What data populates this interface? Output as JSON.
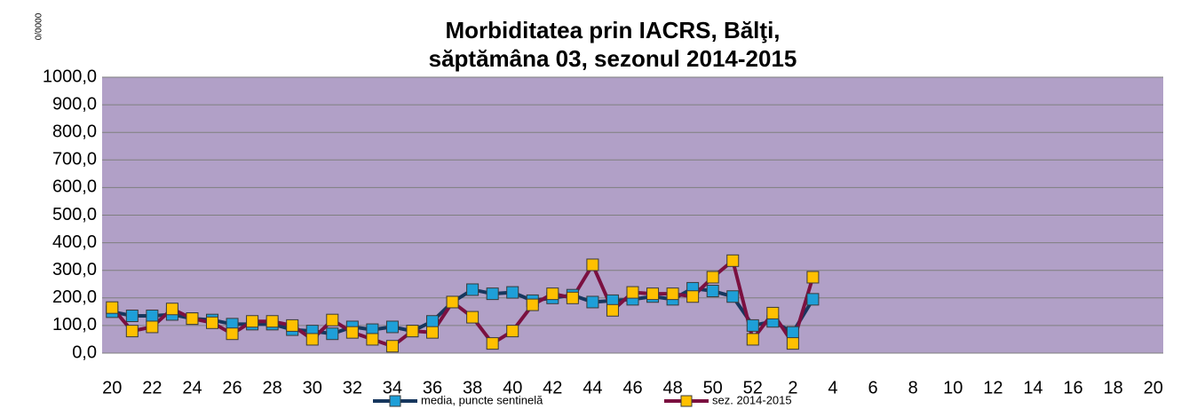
{
  "chart_data": {
    "type": "line",
    "title": [
      "Morbiditatea prin IACRS, Bălţi,",
      "săptămâna 03, sezonul  2014-2015"
    ],
    "y_unit": "0/0000",
    "categories": [
      "20",
      null,
      "22",
      null,
      "24",
      null,
      "26",
      null,
      "28",
      null,
      "30",
      null,
      "32",
      null,
      "34",
      null,
      "36",
      null,
      "38",
      null,
      "40",
      null,
      "42",
      null,
      "44",
      null,
      "46",
      null,
      "48",
      null,
      "50",
      null,
      "52",
      null,
      "2",
      null,
      "4",
      null,
      "6",
      null,
      "8",
      null,
      "10",
      null,
      "12",
      null,
      "14",
      null,
      "16",
      null,
      "18",
      null,
      "20"
    ],
    "series": [
      {
        "name": "media, puncte sentinelă",
        "color": "#1e9fd8",
        "line_color": "#17375e",
        "values": [
          150,
          135,
          135,
          140,
          125,
          120,
          105,
          105,
          105,
          85,
          80,
          70,
          95,
          85,
          95,
          80,
          115,
          185,
          230,
          215,
          220,
          190,
          200,
          210,
          185,
          190,
          195,
          205,
          195,
          235,
          225,
          205,
          100,
          115,
          75,
          195,
          null,
          null,
          null,
          null,
          null,
          null,
          null,
          null,
          null,
          null,
          null,
          null,
          null,
          null,
          null,
          null,
          null
        ]
      },
      {
        "name": "sez. 2014-2015",
        "color": "#ffc000",
        "line_color": "#7b1040",
        "values": [
          165,
          80,
          95,
          160,
          125,
          110,
          70,
          115,
          115,
          100,
          50,
          120,
          75,
          50,
          25,
          80,
          75,
          185,
          130,
          35,
          80,
          175,
          215,
          200,
          320,
          155,
          220,
          215,
          215,
          205,
          275,
          335,
          50,
          145,
          35,
          275,
          null,
          null,
          null,
          null,
          null,
          null,
          null,
          null,
          null,
          null,
          null,
          null,
          null,
          null,
          null,
          null,
          null
        ]
      }
    ],
    "ylim": [
      0,
      1000
    ],
    "yticks": [
      {
        "value": 0,
        "label": "0,0"
      },
      {
        "value": 100,
        "label": "100,0"
      },
      {
        "value": 200,
        "label": "200,0"
      },
      {
        "value": 300,
        "label": "300,0"
      },
      {
        "value": 400,
        "label": "400,0"
      },
      {
        "value": 500,
        "label": "500,0"
      },
      {
        "value": 600,
        "label": "600,0"
      },
      {
        "value": 700,
        "label": "700,0"
      },
      {
        "value": 800,
        "label": "800,0"
      },
      {
        "value": 900,
        "label": "900,0"
      },
      {
        "value": 1000,
        "label": "1000,0"
      }
    ],
    "grid": true,
    "plot_background": "#b1a0c7",
    "legend": "bottom"
  }
}
